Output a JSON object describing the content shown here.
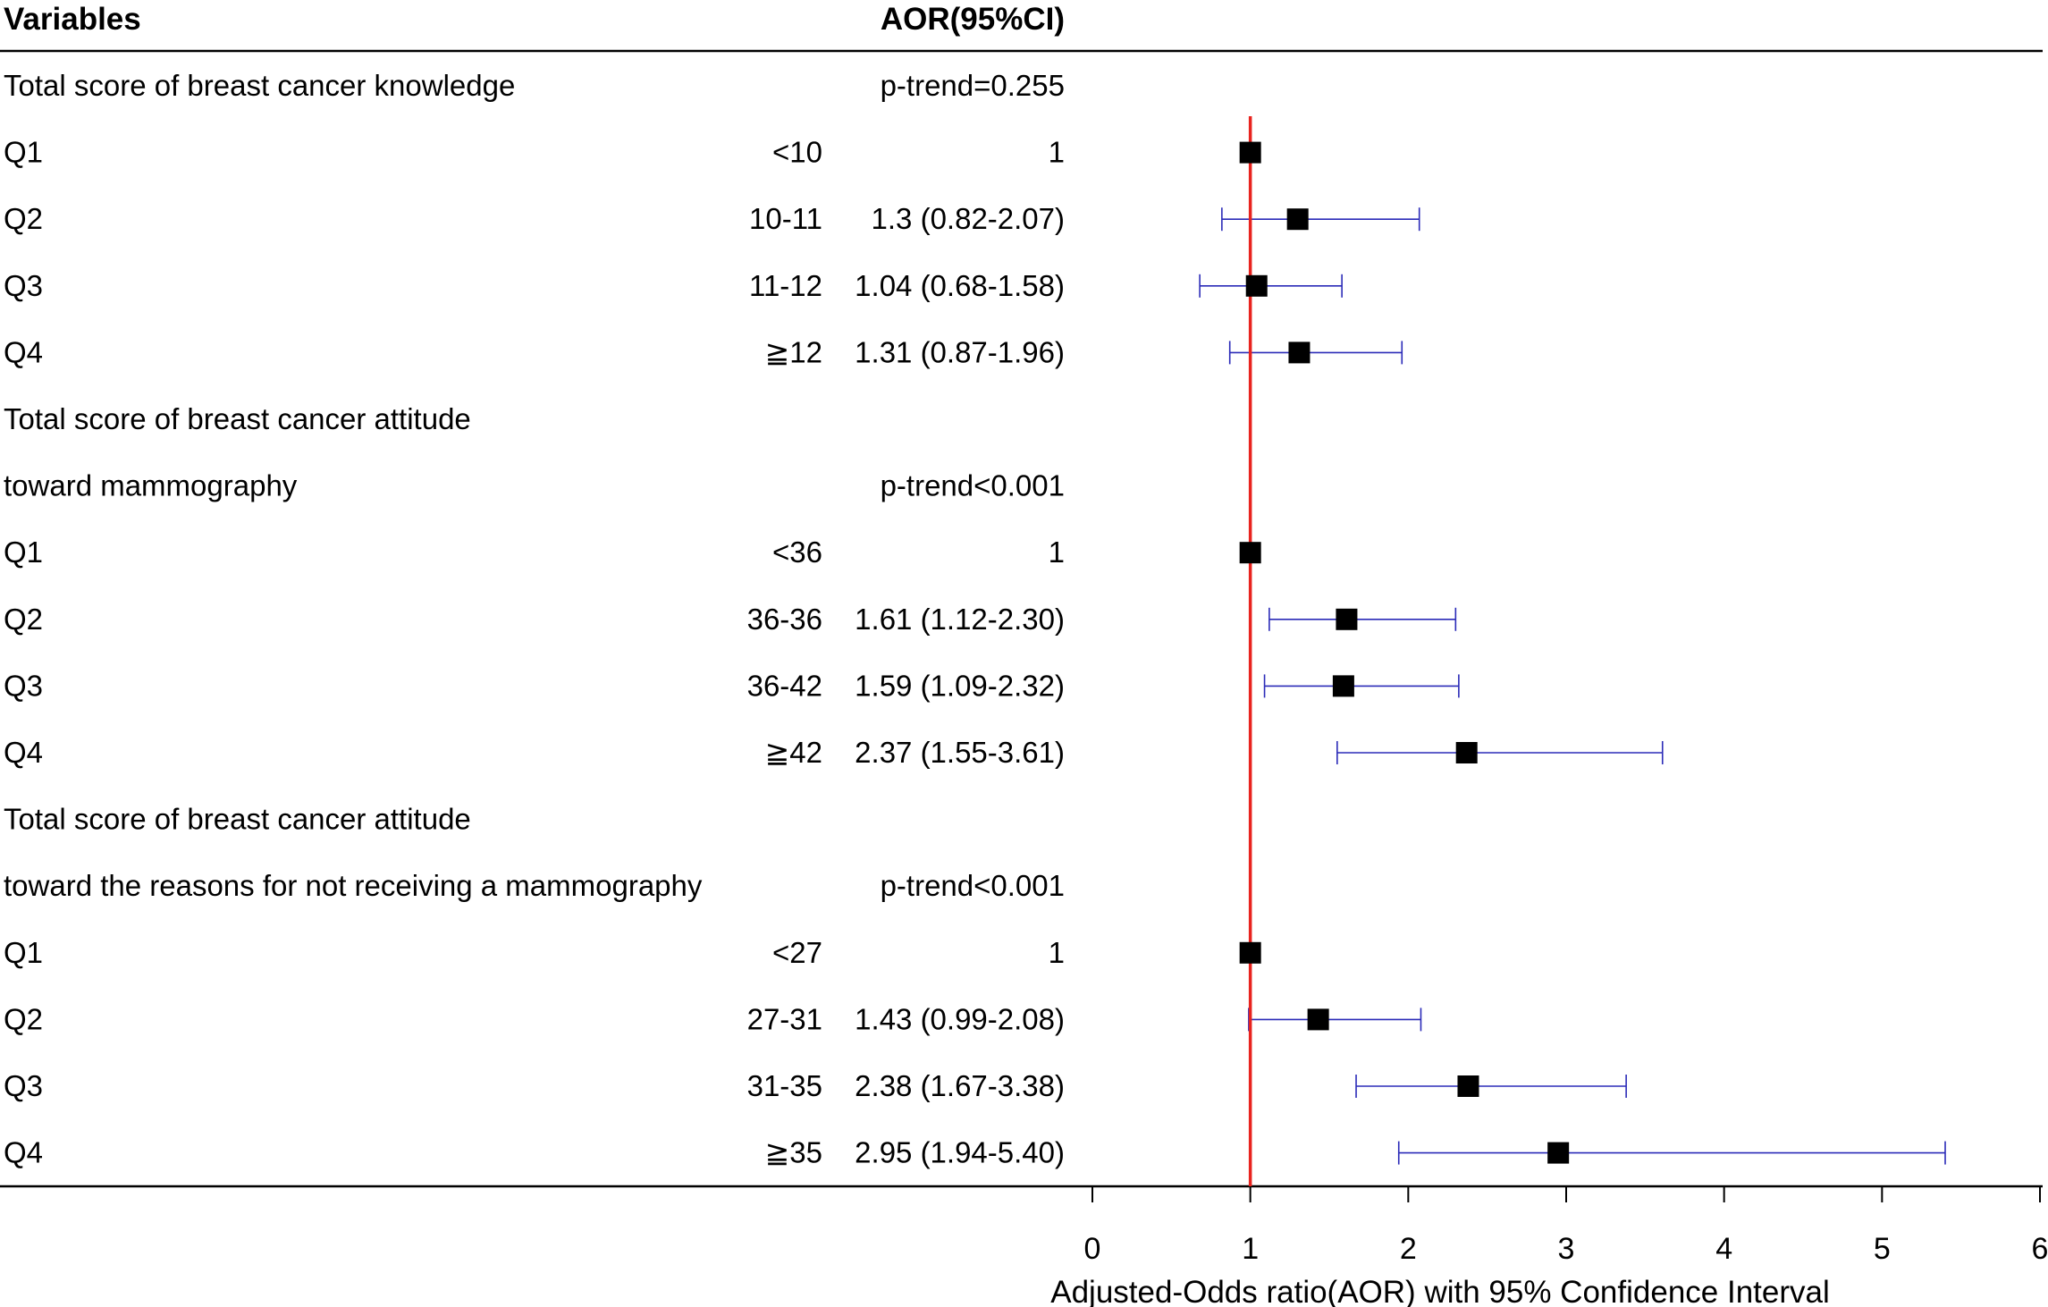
{
  "chart_data": {
    "type": "forest",
    "header": {
      "variables": "Variables",
      "aor": "AOR(95%CI)"
    },
    "xlabel": "Adjusted-Odds ratio(AOR) with 95% Confidence Interval",
    "xlim": [
      0,
      6
    ],
    "xticks": [
      "0",
      "1",
      "2",
      "3",
      "4",
      "5",
      "6"
    ],
    "reference_line": 1,
    "colors": {
      "reference": "#e8231e",
      "ci": "#2b2bb8",
      "point": "#000000",
      "rule": "#000000"
    },
    "rows": [
      {
        "type": "group",
        "label": "Total score of breast cancer knowledge",
        "ptrend": "p-trend=0.255"
      },
      {
        "type": "item",
        "label": "Q1",
        "range": "<10",
        "aor_text": "1",
        "est": 1,
        "lo": 1,
        "hi": 1
      },
      {
        "type": "item",
        "label": "Q2",
        "range": "10-11",
        "aor_text": "1.3 (0.82-2.07)",
        "est": 1.3,
        "lo": 0.82,
        "hi": 2.07
      },
      {
        "type": "item",
        "label": "Q3",
        "range": "11-12",
        "aor_text": "1.04 (0.68-1.58)",
        "est": 1.04,
        "lo": 0.68,
        "hi": 1.58
      },
      {
        "type": "item",
        "label": "Q4",
        "range": "≧12",
        "aor_text": "1.31 (0.87-1.96)",
        "est": 1.31,
        "lo": 0.87,
        "hi": 1.96
      },
      {
        "type": "group",
        "label": "Total score of breast cancer attitude",
        "ptrend": ""
      },
      {
        "type": "group",
        "label": "toward mammography",
        "ptrend": "p-trend<0.001"
      },
      {
        "type": "item",
        "label": "Q1",
        "range": "<36",
        "aor_text": "1",
        "est": 1,
        "lo": 1,
        "hi": 1
      },
      {
        "type": "item",
        "label": "Q2",
        "range": "36-36",
        "aor_text": "1.61 (1.12-2.30)",
        "est": 1.61,
        "lo": 1.12,
        "hi": 2.3
      },
      {
        "type": "item",
        "label": "Q3",
        "range": "36-42",
        "aor_text": "1.59 (1.09-2.32)",
        "est": 1.59,
        "lo": 1.09,
        "hi": 2.32
      },
      {
        "type": "item",
        "label": "Q4",
        "range": "≧42",
        "aor_text": "2.37 (1.55-3.61)",
        "est": 2.37,
        "lo": 1.55,
        "hi": 3.61
      },
      {
        "type": "group",
        "label": "Total score of breast cancer attitude",
        "ptrend": ""
      },
      {
        "type": "group",
        "label": "toward the reasons for not receiving a mammography",
        "ptrend": "p-trend<0.001"
      },
      {
        "type": "item",
        "label": "Q1",
        "range": "<27",
        "aor_text": "1",
        "est": 1,
        "lo": 1,
        "hi": 1
      },
      {
        "type": "item",
        "label": "Q2",
        "range": "27-31",
        "aor_text": "1.43 (0.99-2.08)",
        "est": 1.43,
        "lo": 0.99,
        "hi": 2.08
      },
      {
        "type": "item",
        "label": "Q3",
        "range": "31-35",
        "aor_text": "2.38 (1.67-3.38)",
        "est": 2.38,
        "lo": 1.67,
        "hi": 3.38
      },
      {
        "type": "item",
        "label": "Q4",
        "range": "≧35",
        "aor_text": "2.95 (1.94-5.40)",
        "est": 2.95,
        "lo": 1.94,
        "hi": 5.4
      }
    ]
  }
}
